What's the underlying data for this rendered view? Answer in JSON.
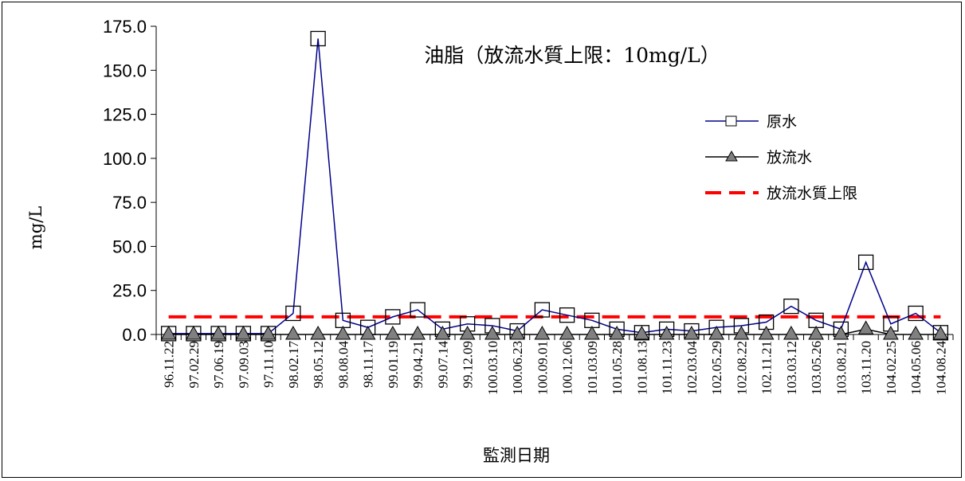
{
  "chart_data": {
    "type": "line",
    "title": "油脂（放流水質上限：10mg/L）",
    "xlabel": "監測日期",
    "ylabel": "mg/L",
    "ylim": [
      0,
      175
    ],
    "yticks": [
      "0.0",
      "25.0",
      "50.0",
      "75.0",
      "100.0",
      "125.0",
      "150.0",
      "175.0"
    ],
    "grid": false,
    "legend_position": "right",
    "categories": [
      "96.11.22",
      "97.02.29",
      "97.06.19",
      "97.09.03",
      "97.11.10",
      "98.02.17",
      "98.05.12",
      "98.08.04",
      "98.11.17",
      "99.01.19",
      "99.04.21",
      "99.07.14",
      "99.12.09",
      "100.03.10",
      "100.06.23",
      "100.09.01",
      "100.12.06",
      "101.03.09",
      "101.05.28",
      "101.08.13",
      "101.11.23",
      "102.03.04",
      "102.05.29",
      "102.08.22",
      "102.11.21",
      "103.03.12",
      "103.05.26",
      "103.08.21",
      "103.11.20",
      "104.02.25",
      "104.05.06",
      "104.08.24"
    ],
    "series": [
      {
        "name": "原水",
        "color": "#00008B",
        "marker": "square",
        "values": [
          0.5,
          0.5,
          0.5,
          0.5,
          0.5,
          12,
          168,
          8,
          4,
          10,
          14,
          3,
          6,
          5,
          2,
          14,
          11,
          8,
          3,
          1,
          3,
          2,
          4,
          5,
          7,
          16,
          8,
          3,
          41,
          6,
          12,
          1
        ]
      },
      {
        "name": "放流水",
        "color": "#000000",
        "marker": "triangle",
        "values": [
          0,
          0,
          0,
          0,
          0,
          0,
          0,
          0,
          0,
          0,
          0,
          0,
          0,
          0,
          0,
          0,
          0,
          0,
          0,
          0,
          0,
          0,
          0,
          0,
          0,
          0,
          0,
          0,
          3,
          0,
          0,
          0
        ]
      },
      {
        "name": "放流水質上限",
        "color": "#FF0000",
        "style": "dashed",
        "values": [
          10,
          10,
          10,
          10,
          10,
          10,
          10,
          10,
          10,
          10,
          10,
          10,
          10,
          10,
          10,
          10,
          10,
          10,
          10,
          10,
          10,
          10,
          10,
          10,
          10,
          10,
          10,
          10,
          10,
          10,
          10,
          10
        ]
      }
    ]
  }
}
